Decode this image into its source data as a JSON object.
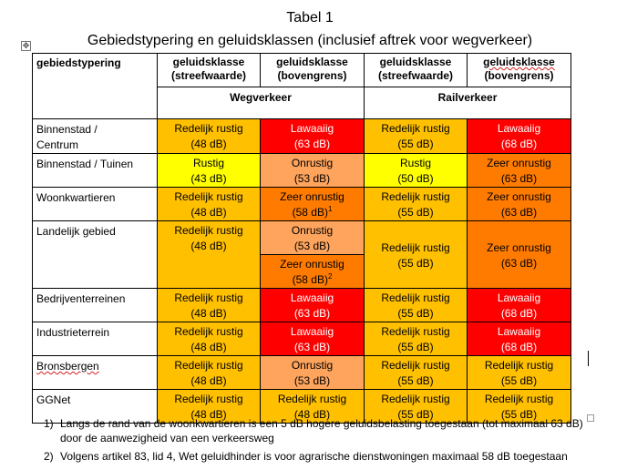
{
  "title": "Tabel 1",
  "subtitle": "Gebiedstypering en geluidsklassen (inclusief aftrek voor wegverkeer)",
  "move_handle_icon": "move-icon",
  "colors": {
    "redelijk_rustig": "#ffc000",
    "lawaaiig": "#ff0000",
    "onrustig": "#fea45c",
    "zeer_onrustig": "#ff7b00",
    "rustig": "#ffff00"
  },
  "table": {
    "header": {
      "gebied": "gebiedstypering",
      "c1_l1": "geluidsklasse",
      "c1_l2": "(streefwaarde)",
      "c2_l1": "geluidsklasse",
      "c2_l2": "(bovengrens)",
      "c3_l1": "geluidsklasse",
      "c3_l2": "(streefwaarde)",
      "c4_l1": "geluidsklasse",
      "c4_l2": "(bovengrens)"
    },
    "groups": {
      "weg": "Wegverkeer",
      "rail": "Railverkeer"
    },
    "rows": {
      "binnenstad_centrum": {
        "name_l1": "Binnenstad /",
        "name_l2": "Centrum",
        "c1": {
          "label": "Redelijk rustig",
          "value": "(48 dB)"
        },
        "c2": {
          "label": "Lawaaiig",
          "value": "(63 dB)"
        },
        "c3": {
          "label": "Redelijk rustig",
          "value": "(55 dB)"
        },
        "c4": {
          "label": "Lawaaiig",
          "value": "(68 dB)"
        }
      },
      "binnenstad_tuinen": {
        "name": "Binnenstad / Tuinen",
        "c1": {
          "label": "Rustig",
          "value": "(43 dB)"
        },
        "c2": {
          "label": "Onrustig",
          "value": "(53 dB)"
        },
        "c3": {
          "label": "Rustig",
          "value": "(50 dB)"
        },
        "c4": {
          "label": "Zeer onrustig",
          "value": "(63 dB)"
        }
      },
      "woonkwartieren": {
        "name": "Woonkwartieren",
        "c1": {
          "label": "Redelijk rustig",
          "value": "(48 dB)"
        },
        "c2": {
          "label": "Zeer onrustig",
          "value": "(58 dB)",
          "sup": "1"
        },
        "c3": {
          "label": "Redelijk rustig",
          "value": "(55 dB)"
        },
        "c4": {
          "label": "Zeer onrustig",
          "value": "(63 dB)"
        }
      },
      "landelijk": {
        "name": "Landelijk gebied",
        "c1": {
          "label": "Redelijk rustig",
          "value": "(48 dB)"
        },
        "c2a": {
          "label": "Onrustig",
          "value": "(53 dB)"
        },
        "c2b": {
          "label": "Zeer onrustig",
          "value": "(58 dB)",
          "sup": "2"
        },
        "c3": {
          "label": "Redelijk rustig",
          "value": "(55 dB)"
        },
        "c4": {
          "label": "Zeer onrustig",
          "value": "(63 dB)"
        }
      },
      "bedrijventerreinen": {
        "name": "Bedrijventerreinen",
        "c1": {
          "label": "Redelijk rustig",
          "value": "(48 dB)"
        },
        "c2": {
          "label": "Lawaaiig",
          "value": "(63 dB)"
        },
        "c3": {
          "label": "Redelijk rustig",
          "value": "(55 dB)"
        },
        "c4": {
          "label": "Lawaaiig",
          "value": "(68 dB)"
        }
      },
      "industrieterrein": {
        "name": "Industrieterrein",
        "c1": {
          "label": "Redelijk rustig",
          "value": "(48 dB)"
        },
        "c2": {
          "label": "Lawaaiig",
          "value": "(63 dB)"
        },
        "c3": {
          "label": "Redelijk rustig",
          "value": "(55 dB)"
        },
        "c4": {
          "label": "Lawaaiig",
          "value": "(68 dB)"
        }
      },
      "bronsbergen": {
        "name": "Bronsbergen",
        "c1": {
          "label": "Redelijk rustig",
          "value": "(48 dB)"
        },
        "c2": {
          "label": "Onrustig",
          "value": "(53 dB)"
        },
        "c3": {
          "label": "Redelijk rustig",
          "value": "(55 dB)"
        },
        "c4": {
          "label": "Redelijk rustig",
          "value": "(55 dB)"
        }
      },
      "ggnet": {
        "name": "GGNet",
        "c1": {
          "label": "Redelijk rustig",
          "value": "(48 dB)"
        },
        "c2": {
          "label": "Redelijk rustig",
          "value": "(48 dB)"
        },
        "c3": {
          "label": "Redelijk rustig",
          "value": "(55 dB)"
        },
        "c4": {
          "label": "Redelijk rustig",
          "value": "(55 dB)"
        }
      }
    }
  },
  "notes": [
    {
      "num": "1)",
      "line1": "Langs de rand van de woonkwartieren is een 5 dB hogere geluidsbelasting toegestaan (tot maximaal 63 dB)",
      "line2": "door de aanwezigheid van een verkeersweg"
    },
    {
      "num": "2)",
      "line1": "Volgens artikel 83, lid 4, Wet geluidhinder is voor agrarische dienstwoningen maximaal 58 dB toegestaan"
    }
  ]
}
